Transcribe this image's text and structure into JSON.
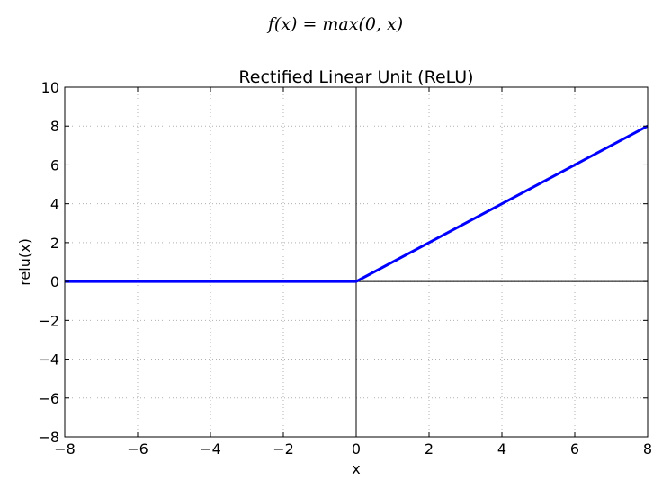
{
  "formula": "f(x) = max(0, x)",
  "chart_data": {
    "type": "line",
    "title": "Rectified Linear Unit (ReLU)",
    "xlabel": "x",
    "ylabel": "relu(x)",
    "xlim": [
      -8,
      8
    ],
    "ylim": [
      -8,
      10
    ],
    "x_ticks": [
      -8,
      -6,
      -4,
      -2,
      0,
      2,
      4,
      6,
      8
    ],
    "y_ticks": [
      -8,
      -6,
      -4,
      -2,
      0,
      2,
      4,
      6,
      8,
      10
    ],
    "x_tick_labels": [
      "−8",
      "−6",
      "−4",
      "−2",
      "0",
      "2",
      "4",
      "6",
      "8"
    ],
    "y_tick_labels": [
      "−8",
      "−6",
      "−4",
      "−2",
      "0",
      "2",
      "4",
      "6",
      "8",
      "10"
    ],
    "grid": true,
    "reference_lines": {
      "x": 0,
      "y": 0
    },
    "series": [
      {
        "x": [
          -8,
          0,
          8
        ],
        "y": [
          0,
          0,
          8
        ],
        "color": "#0000ff"
      }
    ]
  }
}
